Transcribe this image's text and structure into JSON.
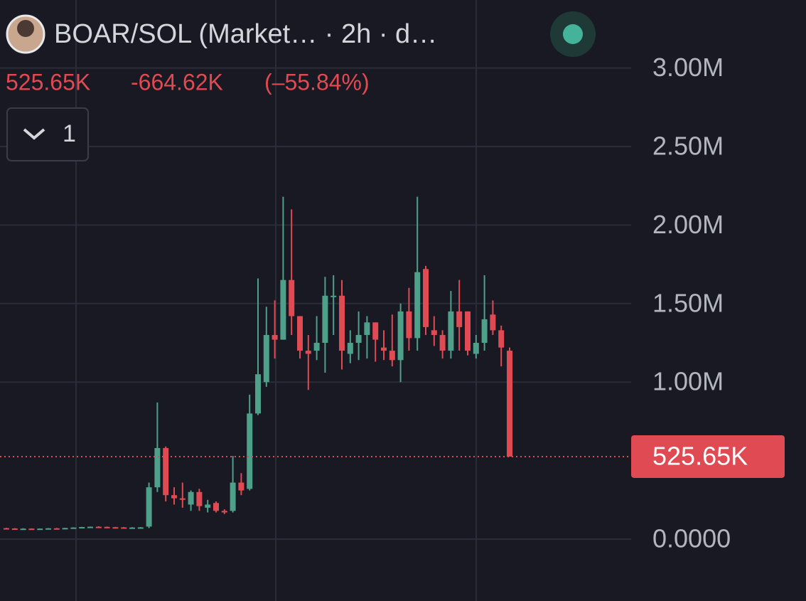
{
  "chart_data": {
    "type": "candlestick",
    "title": "BOAR/SOL (Market… · 2h · d…",
    "last_price": {
      "value": 525650,
      "label": "525.65K"
    },
    "change": "-664.62K",
    "change_percent": "(–55.84%)",
    "indicator_count": "1",
    "up_color": "#4fa08b",
    "down_color": "#e04a52",
    "ylim": [
      -394000,
      3433000
    ],
    "yticks": [
      {
        "value": 0,
        "label": "0.0000"
      },
      {
        "value": 1000000,
        "label": "1.00M"
      },
      {
        "value": 1500000,
        "label": "1.50M"
      },
      {
        "value": 2000000,
        "label": "2.00M"
      },
      {
        "value": 2500000,
        "label": "2.50M"
      },
      {
        "value": 3000000,
        "label": "3.00M"
      }
    ],
    "grid": true,
    "open": [
      70000,
      68000,
      66000,
      67000,
      64000,
      67000,
      69000,
      67000,
      71000,
      74000,
      77000,
      79000,
      78000,
      76000,
      75000,
      73000,
      74000,
      80000,
      330000,
      580000,
      280000,
      260000,
      220000,
      300000,
      200000,
      230000,
      180000,
      180000,
      360000,
      320000,
      800000,
      1000000,
      1300000,
      1270000,
      1650000,
      1420000,
      1200000,
      1200000,
      1250000,
      1550000,
      1550000,
      1180000,
      1250000,
      1300000,
      1380000,
      1220000,
      1200000,
      1140000,
      1450000,
      1280000,
      1720000,
      1330000,
      1300000,
      1200000,
      1450000,
      1450000,
      1180000,
      1250000,
      1430000,
      1330000,
      1200000
    ],
    "high": [
      72000,
      70000,
      69000,
      69000,
      68000,
      70000,
      71000,
      72000,
      75000,
      78000,
      80000,
      82000,
      80000,
      78000,
      77000,
      76000,
      77000,
      360000,
      870000,
      590000,
      330000,
      360000,
      310000,
      320000,
      250000,
      240000,
      190000,
      530000,
      420000,
      920000,
      1660000,
      1480000,
      1520000,
      2180000,
      2100000,
      1420000,
      1300000,
      1420000,
      1670000,
      1680000,
      1650000,
      1330000,
      1450000,
      1420000,
      1380000,
      1330000,
      1430000,
      1500000,
      1600000,
      2180000,
      1740000,
      1420000,
      1330000,
      1580000,
      1650000,
      1450000,
      1300000,
      1680000,
      1520000,
      1360000,
      1220000
    ],
    "low": [
      66000,
      65000,
      64000,
      65000,
      63000,
      66000,
      66000,
      66000,
      70000,
      72000,
      75000,
      77000,
      75000,
      73000,
      72000,
      71000,
      72000,
      70000,
      300000,
      240000,
      220000,
      200000,
      180000,
      180000,
      170000,
      170000,
      160000,
      170000,
      280000,
      310000,
      790000,
      970000,
      1150000,
      1270000,
      1300000,
      1150000,
      950000,
      1140000,
      1060000,
      1300000,
      1080000,
      1120000,
      1140000,
      1150000,
      1130000,
      1140000,
      1100000,
      1000000,
      1200000,
      1200000,
      1300000,
      1230000,
      1150000,
      1150000,
      1200000,
      1170000,
      1150000,
      1200000,
      1300000,
      1100000,
      525650
    ],
    "close": [
      68000,
      66000,
      67000,
      64000,
      67000,
      69000,
      67000,
      71000,
      74000,
      77000,
      79000,
      78000,
      76000,
      75000,
      73000,
      74000,
      75000,
      330000,
      580000,
      280000,
      260000,
      250000,
      300000,
      210000,
      220000,
      180000,
      170000,
      360000,
      310000,
      800000,
      1050000,
      1300000,
      1270000,
      1650000,
      1420000,
      1200000,
      1180000,
      1250000,
      1550000,
      1550000,
      1200000,
      1250000,
      1300000,
      1380000,
      1270000,
      1200000,
      1140000,
      1450000,
      1280000,
      1700000,
      1350000,
      1300000,
      1200000,
      1450000,
      1350000,
      1200000,
      1250000,
      1400000,
      1330000,
      1220000,
      525650
    ]
  }
}
